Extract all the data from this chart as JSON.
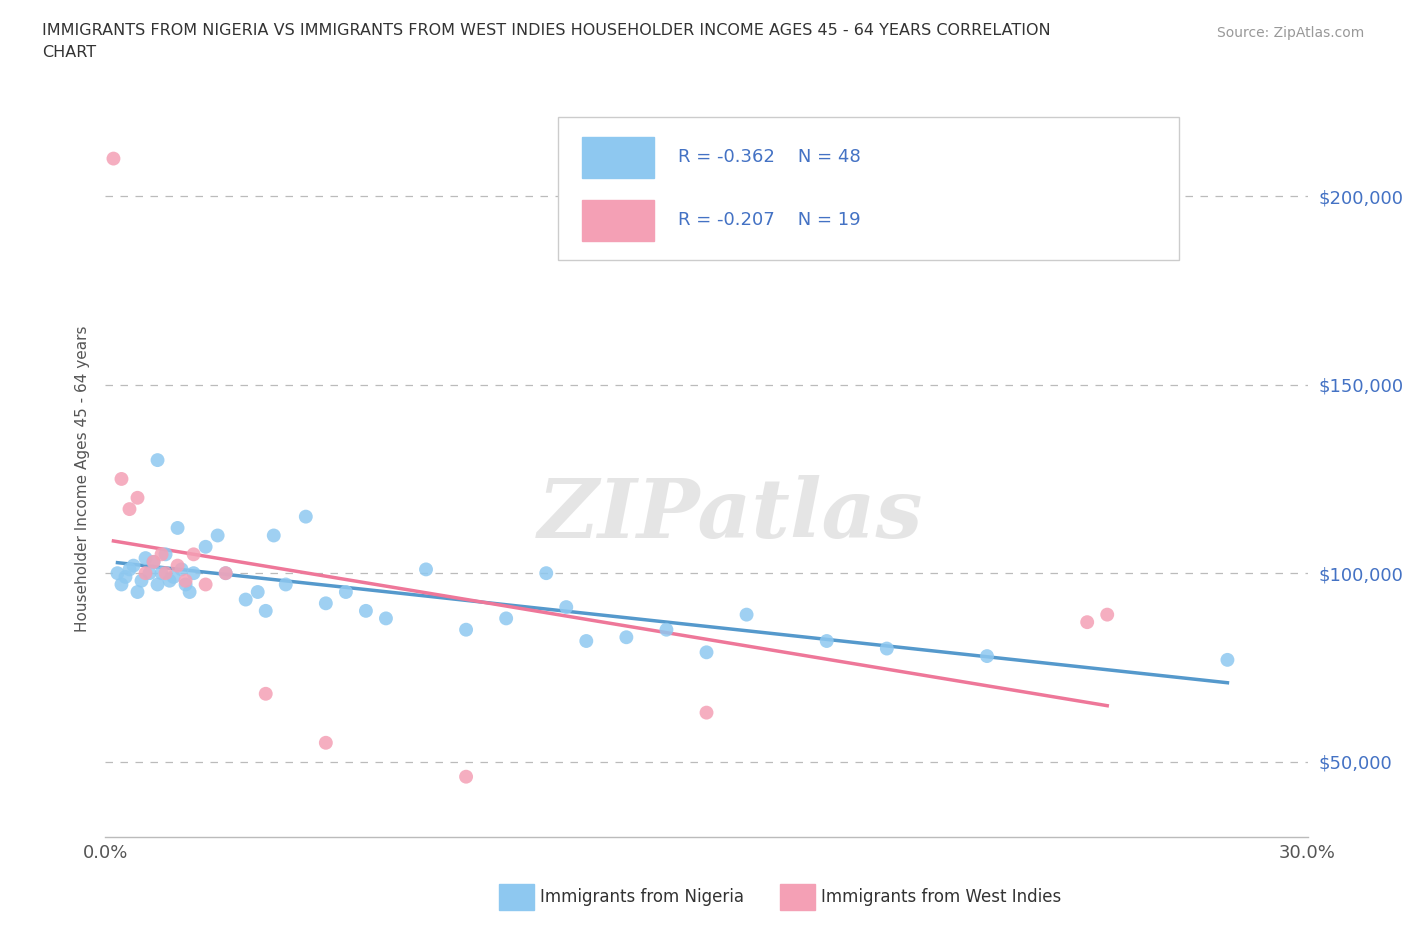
{
  "title_line1": "IMMIGRANTS FROM NIGERIA VS IMMIGRANTS FROM WEST INDIES HOUSEHOLDER INCOME AGES 45 - 64 YEARS CORRELATION",
  "title_line2": "CHART",
  "source": "Source: ZipAtlas.com",
  "ylabel": "Householder Income Ages 45 - 64 years",
  "xlim": [
    0.0,
    0.3
  ],
  "ylim": [
    30000,
    220000
  ],
  "xticks": [
    0.0,
    0.05,
    0.1,
    0.15,
    0.2,
    0.25,
    0.3
  ],
  "ytick_values": [
    50000,
    100000,
    150000,
    200000
  ],
  "ytick_labels": [
    "$50,000",
    "$100,000",
    "$150,000",
    "$200,000"
  ],
  "nigeria_R": -0.362,
  "nigeria_N": 48,
  "westindies_R": -0.207,
  "westindies_N": 19,
  "nigeria_scatter_color": "#8EC8F0",
  "westindies_scatter_color": "#F4A0B5",
  "nigeria_line_color": "#5599CC",
  "westindies_line_color": "#EE7799",
  "background_color": "#ffffff",
  "grid_color": "#cccccc",
  "watermark": "ZIPatlas",
  "legend_label_nigeria": "Immigrants from Nigeria",
  "legend_label_westindies": "Immigrants from West Indies",
  "nigeria_x": [
    0.003,
    0.004,
    0.005,
    0.006,
    0.007,
    0.008,
    0.009,
    0.01,
    0.011,
    0.012,
    0.013,
    0.013,
    0.014,
    0.015,
    0.016,
    0.017,
    0.018,
    0.019,
    0.02,
    0.021,
    0.022,
    0.025,
    0.028,
    0.03,
    0.035,
    0.038,
    0.04,
    0.042,
    0.045,
    0.05,
    0.055,
    0.06,
    0.065,
    0.07,
    0.08,
    0.09,
    0.1,
    0.11,
    0.115,
    0.12,
    0.13,
    0.14,
    0.15,
    0.16,
    0.18,
    0.195,
    0.22,
    0.28
  ],
  "nigeria_y": [
    100000,
    97000,
    99000,
    101000,
    102000,
    95000,
    98000,
    104000,
    100000,
    103000,
    97000,
    130000,
    100000,
    105000,
    98000,
    99000,
    112000,
    101000,
    97000,
    95000,
    100000,
    107000,
    110000,
    100000,
    93000,
    95000,
    90000,
    110000,
    97000,
    115000,
    92000,
    95000,
    90000,
    88000,
    101000,
    85000,
    88000,
    100000,
    91000,
    82000,
    83000,
    85000,
    79000,
    89000,
    82000,
    80000,
    78000,
    77000
  ],
  "westindies_x": [
    0.002,
    0.004,
    0.006,
    0.008,
    0.01,
    0.012,
    0.014,
    0.015,
    0.018,
    0.02,
    0.022,
    0.025,
    0.03,
    0.04,
    0.055,
    0.09,
    0.15,
    0.245,
    0.25
  ],
  "westindies_y": [
    210000,
    125000,
    117000,
    120000,
    100000,
    103000,
    105000,
    100000,
    102000,
    98000,
    105000,
    97000,
    100000,
    68000,
    55000,
    46000,
    63000,
    87000,
    89000
  ]
}
